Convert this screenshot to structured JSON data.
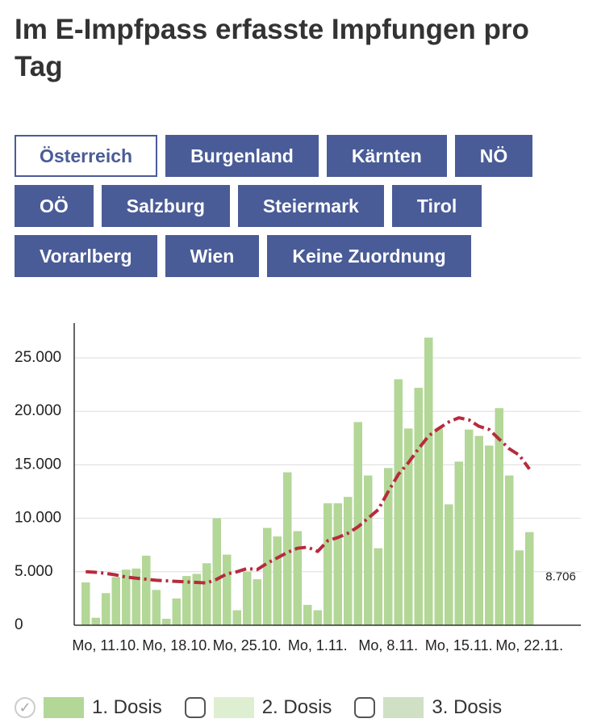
{
  "title": "Im E-Impfpass erfasste Impfungen pro Tag",
  "tabs": [
    {
      "label": "Österreich",
      "selected": true
    },
    {
      "label": "Burgenland",
      "selected": false
    },
    {
      "label": "Kärnten",
      "selected": false
    },
    {
      "label": "NÖ",
      "selected": false
    },
    {
      "label": "OÖ",
      "selected": false
    },
    {
      "label": "Salzburg",
      "selected": false
    },
    {
      "label": "Steiermark",
      "selected": false
    },
    {
      "label": "Tirol",
      "selected": false
    },
    {
      "label": "Vorarlberg",
      "selected": false
    },
    {
      "label": "Wien",
      "selected": false
    },
    {
      "label": "Keine Zuordnung",
      "selected": false
    }
  ],
  "legend": [
    {
      "name": "1. Dosis",
      "color": "#b3d797",
      "checked": true
    },
    {
      "name": "2. Dosis",
      "color": "#ddefd0",
      "checked": false
    },
    {
      "name": "3. Dosis",
      "color": "#cfe0c4",
      "checked": false
    }
  ],
  "chart_data": {
    "type": "bar",
    "categories": [
      null,
      null,
      "Mo, 11.10.",
      null,
      null,
      null,
      null,
      null,
      null,
      "Mo, 18.10.",
      null,
      null,
      null,
      null,
      null,
      null,
      "Mo, 25.10.",
      null,
      null,
      null,
      null,
      null,
      null,
      "Mo, 1.11.",
      null,
      null,
      null,
      null,
      null,
      null,
      "Mo, 8.11.",
      null,
      null,
      null,
      null,
      null,
      null,
      "Mo, 15.11.",
      null,
      null,
      null,
      null,
      null,
      null,
      "Mo, 22.11."
    ],
    "series": [
      {
        "name": "1. Dosis",
        "color": "#b3d797",
        "values": [
          4000,
          700,
          3000,
          4500,
          5200,
          5300,
          6500,
          3300,
          600,
          2500,
          4600,
          4800,
          5800,
          10000,
          6600,
          1400,
          5000,
          4300,
          9100,
          8300,
          14300,
          8800,
          1900,
          1400,
          11400,
          11400,
          12000,
          19000,
          14000,
          7200,
          14700,
          23000,
          18400,
          22200,
          26900,
          18400,
          11300,
          15300,
          18300,
          17700,
          16800,
          20300,
          14000,
          7000,
          8706
        ],
        "value_labels": [
          null,
          null,
          null,
          null,
          null,
          null,
          null,
          null,
          null,
          null,
          null,
          null,
          null,
          null,
          null,
          null,
          null,
          null,
          null,
          null,
          null,
          null,
          null,
          null,
          null,
          null,
          null,
          null,
          null,
          null,
          null,
          null,
          null,
          null,
          null,
          null,
          null,
          null,
          null,
          null,
          null,
          null,
          null,
          null,
          "8.706"
        ]
      },
      {
        "name": "7-Tage-Schnitt",
        "type": "line",
        "color": "#b82a3e",
        "values": [
          5000,
          4950,
          4850,
          4700,
          4500,
          4400,
          4300,
          4200,
          4150,
          4100,
          4050,
          4000,
          3950,
          4300,
          4800,
          5000,
          5300,
          5200,
          5800,
          6300,
          6800,
          7200,
          7300,
          6900,
          7900,
          8200,
          8600,
          9200,
          10000,
          10800,
          12500,
          14100,
          15200,
          16500,
          17700,
          18400,
          19000,
          19400,
          19200,
          18600,
          18300,
          17400,
          16500,
          15900,
          14600
        ]
      }
    ],
    "ylim": [
      0,
      28250
    ],
    "yticks": [
      0,
      {
        "value": 5000,
        "label": "5.000"
      },
      {
        "value": 10000,
        "label": "10.000"
      },
      {
        "value": 15000,
        "label": "15.000"
      },
      {
        "value": 20000,
        "label": "20.000"
      },
      {
        "value": 25000,
        "label": "25.000"
      }
    ],
    "grid": true
  }
}
